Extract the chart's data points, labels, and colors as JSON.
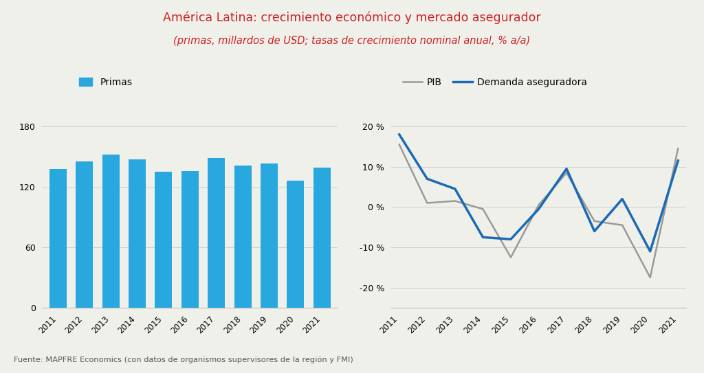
{
  "title_line1": "América Latina: crecimiento económico y mercado asegurador",
  "title_line2": "(primas, millardos de USD; tasas de crecimiento nominal anual, % a/a)",
  "title_color": "#cc2222",
  "background_color": "#f0f0eb",
  "years": [
    2011,
    2012,
    2013,
    2014,
    2015,
    2016,
    2017,
    2018,
    2019,
    2020,
    2021
  ],
  "bar_values": [
    138,
    145,
    152,
    147,
    135,
    136,
    149,
    141,
    143,
    126,
    139
  ],
  "bar_color": "#29a8e0",
  "bar_ylim": [
    0,
    200
  ],
  "bar_yticks": [
    0,
    60,
    120,
    180
  ],
  "pib_values": [
    15.5,
    1.0,
    1.5,
    -0.5,
    -12.5,
    0.5,
    8.5,
    -3.5,
    -4.5,
    -17.5,
    14.5
  ],
  "demanda_values": [
    18.0,
    7.0,
    4.5,
    -7.5,
    -8.0,
    -0.5,
    9.5,
    -6.0,
    2.0,
    -11.0,
    11.5
  ],
  "pib_color": "#999999",
  "demanda_color": "#1a6ab5",
  "line_ylim": [
    -25,
    25
  ],
  "line_yticks": [
    -20,
    -10,
    0,
    10,
    20
  ],
  "source_text": "Fuente: MAPFRE Economics (con datos de organismos supervisores de la región y FMI)",
  "legend_bar_label": "Primas",
  "legend_pib_label": "PIB",
  "legend_demanda_label": "Demanda aseguradora"
}
